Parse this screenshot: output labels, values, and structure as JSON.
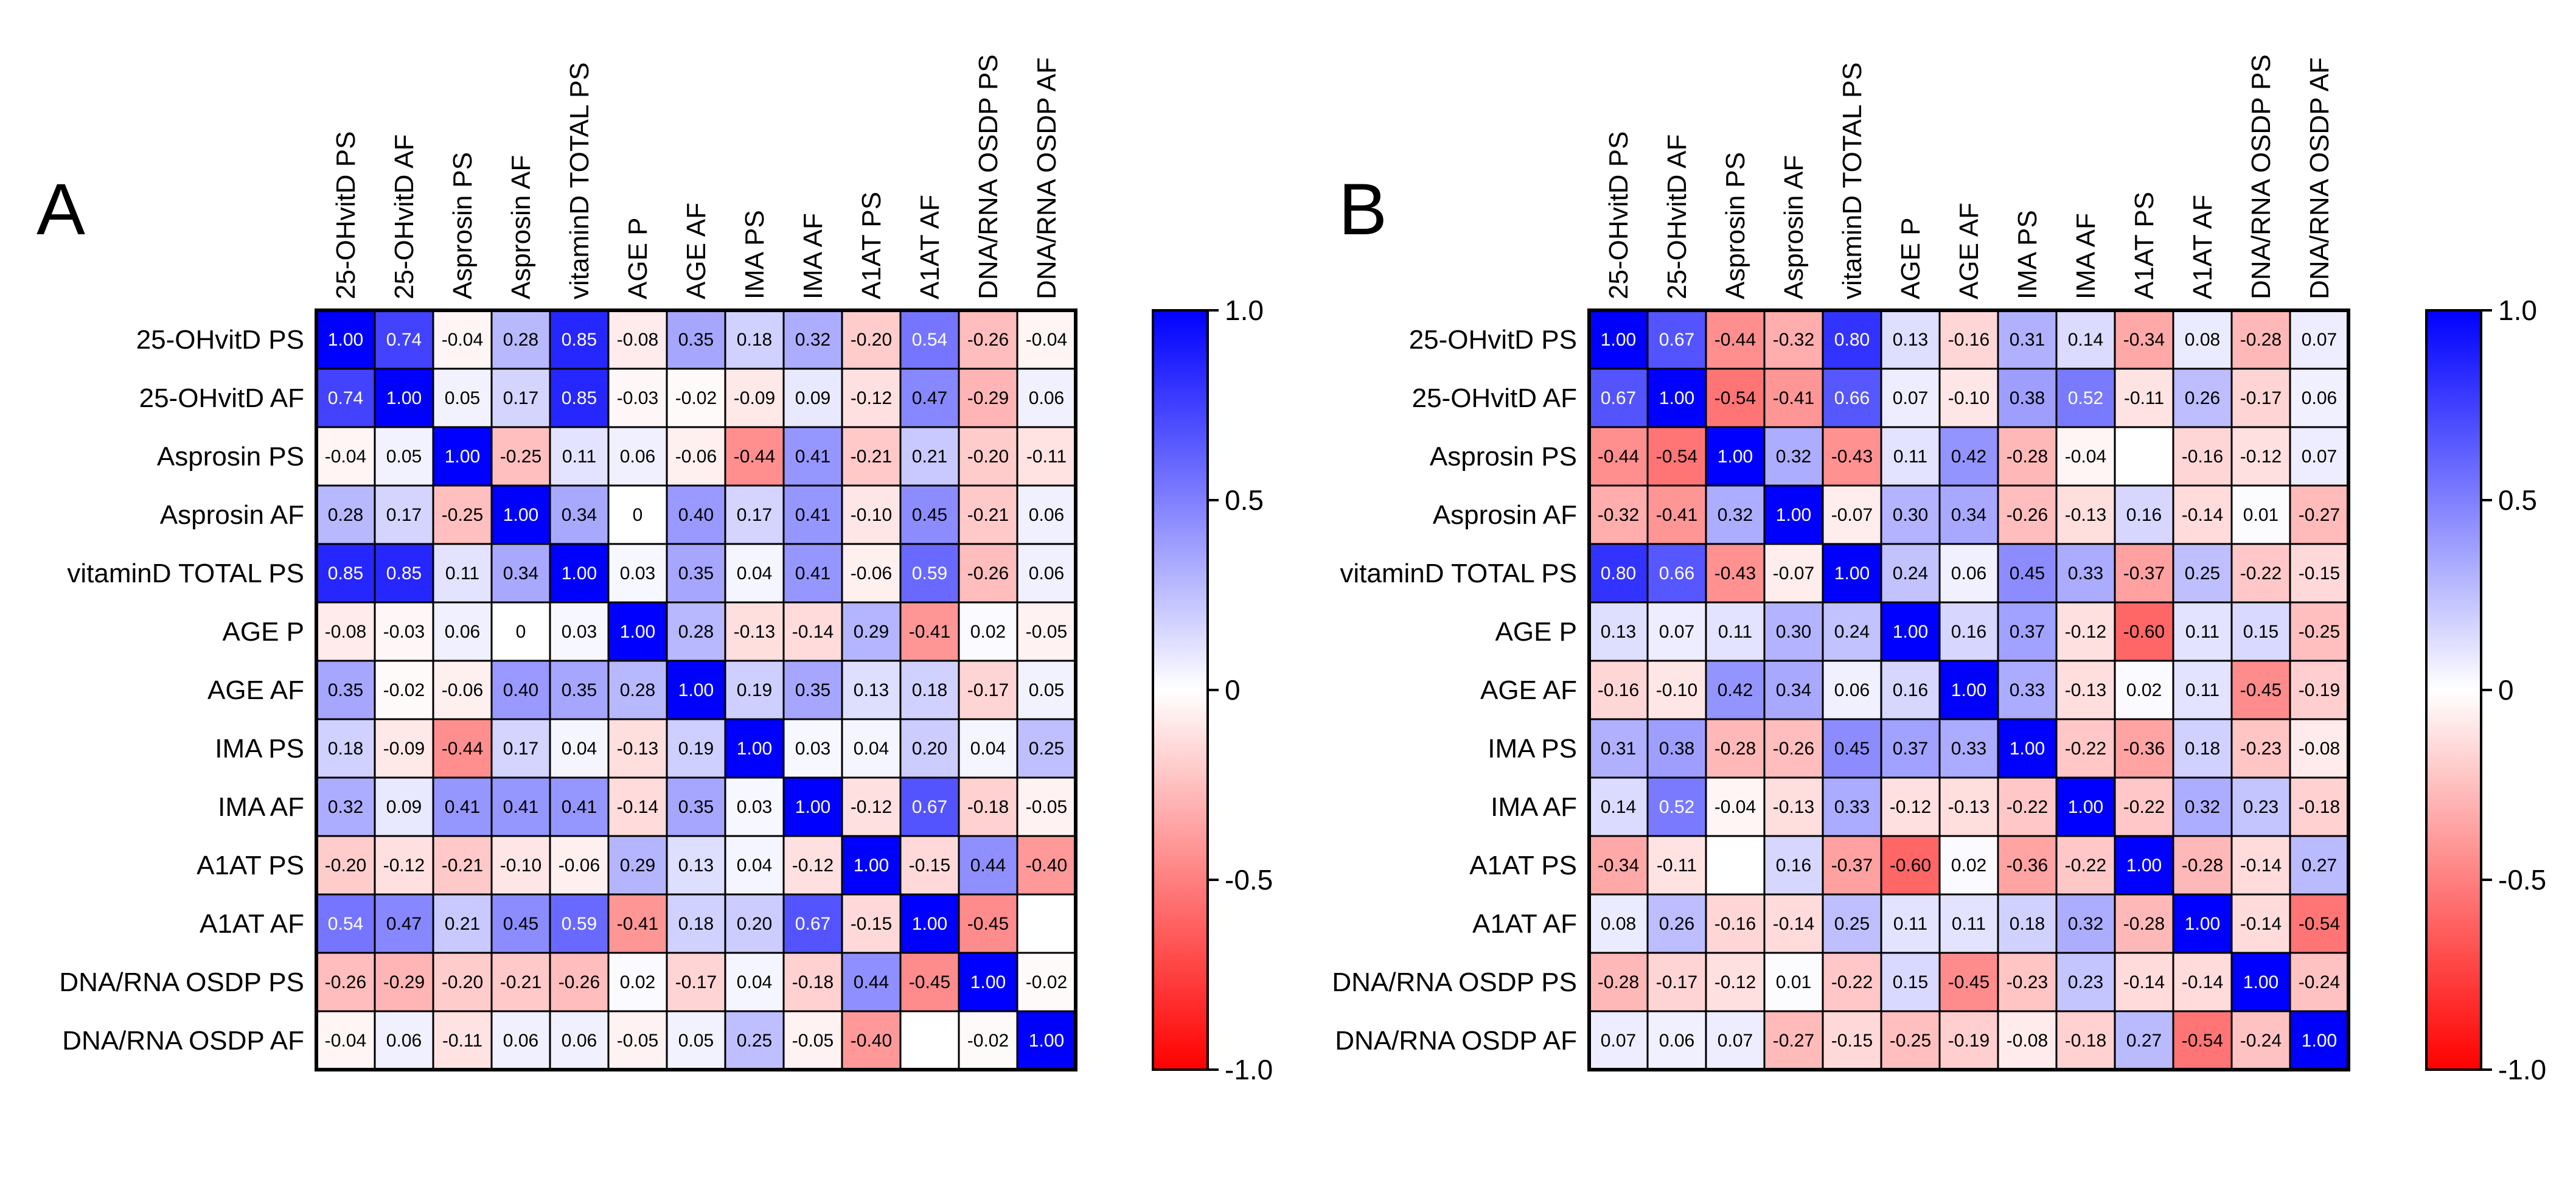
{
  "chart_data": [
    {
      "type": "heatmap",
      "panel": "A",
      "variables": [
        "25-OHvitD PS",
        "25-OHvitD AF",
        "Asprosin PS",
        "Asprosin AF",
        "vitaminD TOTAL PS",
        "AGE P",
        "AGE AF",
        "IMA PS",
        "IMA AF",
        "A1AT PS",
        "A1AT AF",
        "DNA/RNA OSDP PS",
        "DNA/RNA OSDP AF"
      ],
      "values": [
        [
          "1.00",
          "0.74",
          "-0.04",
          "0.28",
          "0.85",
          "-0.08",
          "0.35",
          "0.18",
          "0.32",
          "-0.20",
          "0.54",
          "-0.26",
          "-0.04"
        ],
        [
          "0.74",
          "1.00",
          "0.05",
          "0.17",
          "0.85",
          "-0.03",
          "-0.02",
          "-0.09",
          "0.09",
          "-0.12",
          "0.47",
          "-0.29",
          "0.06"
        ],
        [
          "-0.04",
          "0.05",
          "1.00",
          "-0.25",
          "0.11",
          "0.06",
          "-0.06",
          "-0.44",
          "0.41",
          "-0.21",
          "0.21",
          "-0.20",
          "-0.11"
        ],
        [
          "0.28",
          "0.17",
          "-0.25",
          "1.00",
          "0.34",
          "0",
          "0.40",
          "0.17",
          "0.41",
          "-0.10",
          "0.45",
          "-0.21",
          "0.06"
        ],
        [
          "0.85",
          "0.85",
          "0.11",
          "0.34",
          "1.00",
          "0.03",
          "0.35",
          "0.04",
          "0.41",
          "-0.06",
          "0.59",
          "-0.26",
          "0.06"
        ],
        [
          "-0.08",
          "-0.03",
          "0.06",
          "0",
          "0.03",
          "1.00",
          "0.28",
          "-0.13",
          "-0.14",
          "0.29",
          "-0.41",
          "0.02",
          "-0.05"
        ],
        [
          "0.35",
          "-0.02",
          "-0.06",
          "0.40",
          "0.35",
          "0.28",
          "1.00",
          "0.19",
          "0.35",
          "0.13",
          "0.18",
          "-0.17",
          "0.05"
        ],
        [
          "0.18",
          "-0.09",
          "-0.44",
          "0.17",
          "0.04",
          "-0.13",
          "0.19",
          "1.00",
          "0.03",
          "0.04",
          "0.20",
          "0.04",
          "0.25"
        ],
        [
          "0.32",
          "0.09",
          "0.41",
          "0.41",
          "0.41",
          "-0.14",
          "0.35",
          "0.03",
          "1.00",
          "-0.12",
          "0.67",
          "-0.18",
          "-0.05"
        ],
        [
          "-0.20",
          "-0.12",
          "-0.21",
          "-0.10",
          "-0.06",
          "0.29",
          "0.13",
          "0.04",
          "-0.12",
          "1.00",
          "-0.15",
          "0.44",
          "-0.40"
        ],
        [
          "0.54",
          "0.47",
          "0.21",
          "0.45",
          "0.59",
          "-0.41",
          "0.18",
          "0.20",
          "0.67",
          "-0.15",
          "1.00",
          "-0.45",
          null
        ],
        [
          "-0.26",
          "-0.29",
          "-0.20",
          "-0.21",
          "-0.26",
          "0.02",
          "-0.17",
          "0.04",
          "-0.18",
          "0.44",
          "-0.45",
          "1.00",
          "-0.02"
        ],
        [
          "-0.04",
          "0.06",
          "-0.11",
          "0.06",
          "0.06",
          "-0.05",
          "0.05",
          "0.25",
          "-0.05",
          "-0.40",
          null,
          "-0.02",
          "1.00"
        ]
      ],
      "colorbar": {
        "range": [
          -1.0,
          1.0
        ],
        "ticks": [
          "1.0",
          "0.5",
          "0",
          "-0.5",
          "-1.0"
        ],
        "low_color": "#ff0000",
        "mid_color": "#ffffff",
        "high_color": "#0000ff"
      }
    },
    {
      "type": "heatmap",
      "panel": "B",
      "variables": [
        "25-OHvitD PS",
        "25-OHvitD AF",
        "Asprosin PS",
        "Asprosin AF",
        "vitaminD TOTAL PS",
        "AGE P",
        "AGE AF",
        "IMA PS",
        "IMA AF",
        "A1AT PS",
        "A1AT AF",
        "DNA/RNA OSDP PS",
        "DNA/RNA OSDP AF"
      ],
      "values": [
        [
          "1.00",
          "0.67",
          "-0.44",
          "-0.32",
          "0.80",
          "0.13",
          "-0.16",
          "0.31",
          "0.14",
          "-0.34",
          "0.08",
          "-0.28",
          "0.07"
        ],
        [
          "0.67",
          "1.00",
          "-0.54",
          "-0.41",
          "0.66",
          "0.07",
          "-0.10",
          "0.38",
          "0.52",
          "-0.11",
          "0.26",
          "-0.17",
          "0.06"
        ],
        [
          "-0.44",
          "-0.54",
          "1.00",
          "0.32",
          "-0.43",
          "0.11",
          "0.42",
          "-0.28",
          "-0.04",
          null,
          "-0.16",
          "-0.12",
          "0.07"
        ],
        [
          "-0.32",
          "-0.41",
          "0.32",
          "1.00",
          "-0.07",
          "0.30",
          "0.34",
          "-0.26",
          "-0.13",
          "0.16",
          "-0.14",
          "0.01",
          "-0.27"
        ],
        [
          "0.80",
          "0.66",
          "-0.43",
          "-0.07",
          "1.00",
          "0.24",
          "0.06",
          "0.45",
          "0.33",
          "-0.37",
          "0.25",
          "-0.22",
          "-0.15"
        ],
        [
          "0.13",
          "0.07",
          "0.11",
          "0.30",
          "0.24",
          "1.00",
          "0.16",
          "0.37",
          "-0.12",
          "-0.60",
          "0.11",
          "0.15",
          "-0.25"
        ],
        [
          "-0.16",
          "-0.10",
          "0.42",
          "0.34",
          "0.06",
          "0.16",
          "1.00",
          "0.33",
          "-0.13",
          "0.02",
          "0.11",
          "-0.45",
          "-0.19"
        ],
        [
          "0.31",
          "0.38",
          "-0.28",
          "-0.26",
          "0.45",
          "0.37",
          "0.33",
          "1.00",
          "-0.22",
          "-0.36",
          "0.18",
          "-0.23",
          "-0.08"
        ],
        [
          "0.14",
          "0.52",
          "-0.04",
          "-0.13",
          "0.33",
          "-0.12",
          "-0.13",
          "-0.22",
          "1.00",
          "-0.22",
          "0.32",
          "0.23",
          "-0.18"
        ],
        [
          "-0.34",
          "-0.11",
          null,
          "0.16",
          "-0.37",
          "-0.60",
          "0.02",
          "-0.36",
          "-0.22",
          "1.00",
          "-0.28",
          "-0.14",
          "0.27"
        ],
        [
          "0.08",
          "0.26",
          "-0.16",
          "-0.14",
          "0.25",
          "0.11",
          "0.11",
          "0.18",
          "0.32",
          "-0.28",
          "1.00",
          "-0.14",
          "-0.54"
        ],
        [
          "-0.28",
          "-0.17",
          "-0.12",
          "0.01",
          "-0.22",
          "0.15",
          "-0.45",
          "-0.23",
          "0.23",
          "-0.14",
          "-0.14",
          "1.00",
          "-0.24"
        ],
        [
          "0.07",
          "0.06",
          "0.07",
          "-0.27",
          "-0.15",
          "-0.25",
          "-0.19",
          "-0.08",
          "-0.18",
          "0.27",
          "-0.54",
          "-0.24",
          "1.00"
        ]
      ],
      "colorbar": {
        "range": [
          -1.0,
          1.0
        ],
        "ticks": [
          "1.0",
          "0.5",
          "0",
          "-0.5",
          "-1.0"
        ],
        "low_color": "#ff0000",
        "mid_color": "#ffffff",
        "high_color": "#0000ff"
      }
    }
  ]
}
